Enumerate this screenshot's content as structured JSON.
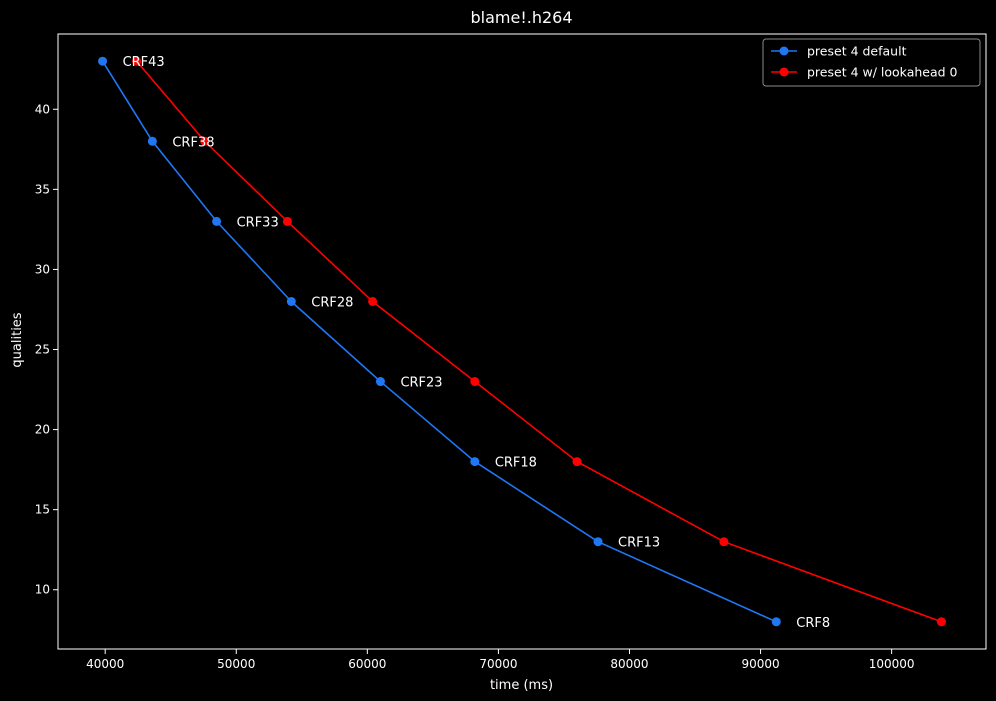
{
  "chart_data": {
    "type": "line",
    "title": "blame!.h264",
    "xlabel": "time (ms)",
    "ylabel": "qualities",
    "xlim": [
      36400,
      107200
    ],
    "ylim": [
      6.3,
      44.7
    ],
    "xticks": [
      40000,
      50000,
      60000,
      70000,
      80000,
      90000,
      100000
    ],
    "yticks": [
      10,
      15,
      20,
      25,
      30,
      35,
      40
    ],
    "grid": false,
    "legend": "top-right",
    "series": [
      {
        "name": "preset 4 default",
        "color": "#1f77f4",
        "points": [
          {
            "x": 39800,
            "y": 43
          },
          {
            "x": 43600,
            "y": 38
          },
          {
            "x": 48500,
            "y": 33
          },
          {
            "x": 54200,
            "y": 28
          },
          {
            "x": 61000,
            "y": 23
          },
          {
            "x": 68200,
            "y": 18
          },
          {
            "x": 77600,
            "y": 13
          },
          {
            "x": 91200,
            "y": 8
          }
        ]
      },
      {
        "name": "preset 4 w/ lookahead 0",
        "color": "#ff0000",
        "points": [
          {
            "x": 42400,
            "y": 43
          },
          {
            "x": 47600,
            "y": 38
          },
          {
            "x": 53900,
            "y": 33
          },
          {
            "x": 60400,
            "y": 28
          },
          {
            "x": 68200,
            "y": 23
          },
          {
            "x": 76000,
            "y": 18
          },
          {
            "x": 87200,
            "y": 13
          },
          {
            "x": 103800,
            "y": 8
          }
        ]
      }
    ],
    "annotations": [
      {
        "text": "CRF43",
        "x": 39800,
        "y": 43
      },
      {
        "text": "CRF38",
        "x": 43600,
        "y": 38
      },
      {
        "text": "CRF33",
        "x": 48500,
        "y": 33
      },
      {
        "text": "CRF28",
        "x": 54200,
        "y": 28
      },
      {
        "text": "CRF23",
        "x": 61000,
        "y": 23
      },
      {
        "text": "CRF18",
        "x": 68200,
        "y": 18
      },
      {
        "text": "CRF13",
        "x": 77600,
        "y": 13
      },
      {
        "text": "CRF8",
        "x": 91200,
        "y": 8
      }
    ]
  }
}
